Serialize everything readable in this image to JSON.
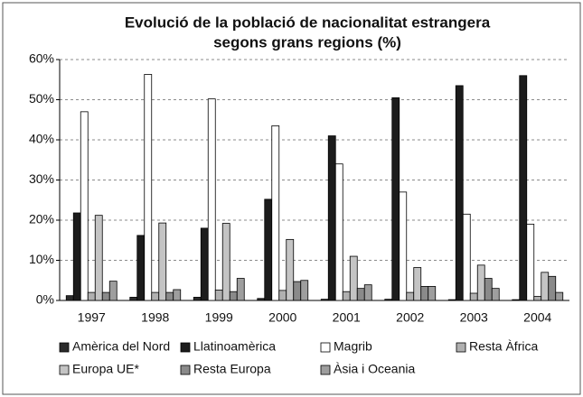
{
  "chart_data": {
    "type": "bar",
    "title": [
      "Evolució de la població de nacionalitat estrangera",
      "segons grans regions (%)"
    ],
    "categories": [
      "1997",
      "1998",
      "1999",
      "2000",
      "2001",
      "2002",
      "2003",
      "2004"
    ],
    "series": [
      {
        "name": "Amèrica del Nord",
        "color": "#2b2b2b",
        "values": [
          1.2,
          0.8,
          0.8,
          0.5,
          0.3,
          0.3,
          0.2,
          0.2
        ]
      },
      {
        "name": "Llatinoamèrica",
        "color": "#1c1c1c",
        "values": [
          21.8,
          16.2,
          18,
          25.2,
          41,
          50.5,
          53.5,
          56
        ]
      },
      {
        "name": "Magrib",
        "color": "#ffffff",
        "values": [
          47,
          56.3,
          50.2,
          43.5,
          34,
          27,
          21.5,
          19
        ]
      },
      {
        "name": "Resta Àfrica",
        "color": "#b0b0b0",
        "values": [
          2,
          2,
          2.6,
          2.5,
          2.2,
          2,
          1.8,
          1
        ]
      },
      {
        "name": "Europa UE*",
        "color": "#c4c4c4",
        "values": [
          21.2,
          19.3,
          19.2,
          15.2,
          11,
          8.2,
          8.8,
          7
        ]
      },
      {
        "name": "Resta Europa",
        "color": "#8a8a8a",
        "values": [
          2,
          2,
          2.2,
          4.7,
          3,
          3.5,
          5.5,
          6
        ]
      },
      {
        "name": "Àsia i Oceania",
        "color": "#9e9e9e",
        "values": [
          4.8,
          2.7,
          5.5,
          5,
          3.9,
          3.5,
          3,
          2
        ]
      }
    ],
    "ylim": [
      0,
      60
    ],
    "yticks": [
      {
        "value": 0,
        "label": "0%"
      },
      {
        "value": 10,
        "label": "10%"
      },
      {
        "value": 20,
        "label": "20%"
      },
      {
        "value": 30,
        "label": "30%"
      },
      {
        "value": 40,
        "label": "40%"
      },
      {
        "value": 50,
        "label": "50%"
      },
      {
        "value": 60,
        "label": "60%"
      }
    ],
    "grid": true,
    "legend": "bottom"
  }
}
